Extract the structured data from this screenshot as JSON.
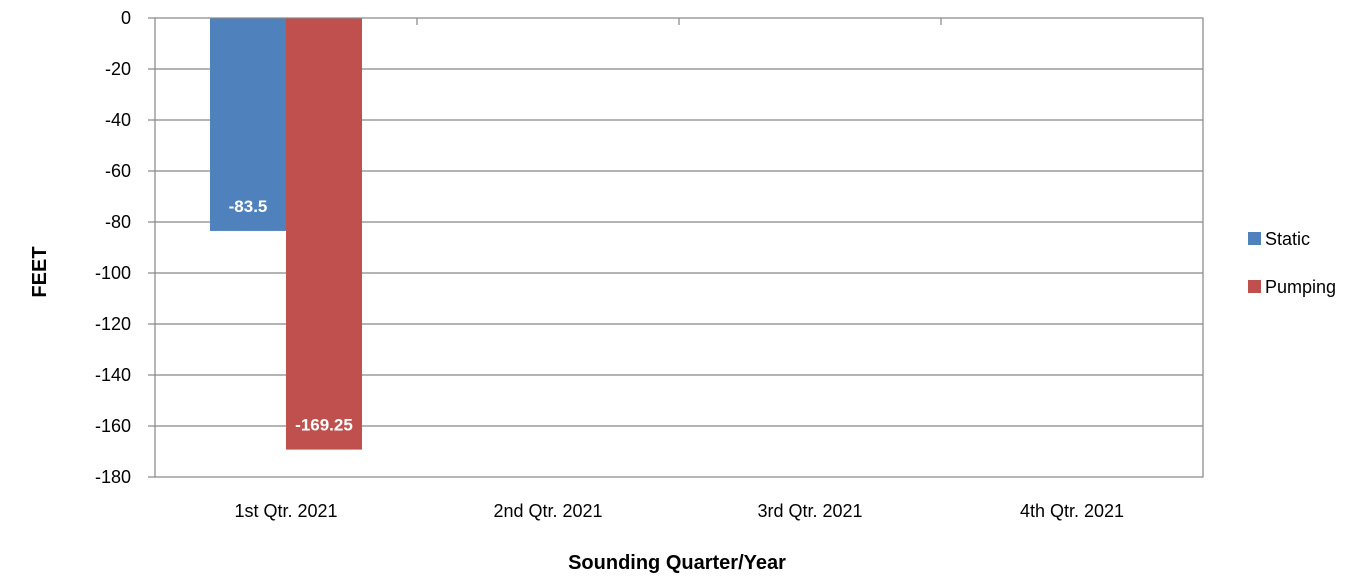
{
  "chart_data": {
    "type": "bar",
    "categories": [
      "1st Qtr. 2021",
      "2nd Qtr. 2021",
      "3rd Qtr. 2021",
      "4th Qtr. 2021"
    ],
    "series": [
      {
        "name": "Static",
        "values": [
          -83.5,
          null,
          null,
          null
        ],
        "labels": [
          "-83.5",
          null,
          null,
          null
        ],
        "color": "#4F81BD"
      },
      {
        "name": "Pumping",
        "values": [
          -169.25,
          null,
          null,
          null
        ],
        "labels": [
          "-169.25",
          null,
          null,
          null
        ],
        "color": "#C0504D"
      }
    ],
    "title": "",
    "xlabel": "Sounding Quarter/Year",
    "ylabel": "FEET",
    "ylim": [
      -180,
      0
    ],
    "yticks": [
      0,
      -20,
      -40,
      -60,
      -80,
      -100,
      -120,
      -140,
      -160,
      -180
    ],
    "grid": true,
    "legend_position": "right"
  }
}
